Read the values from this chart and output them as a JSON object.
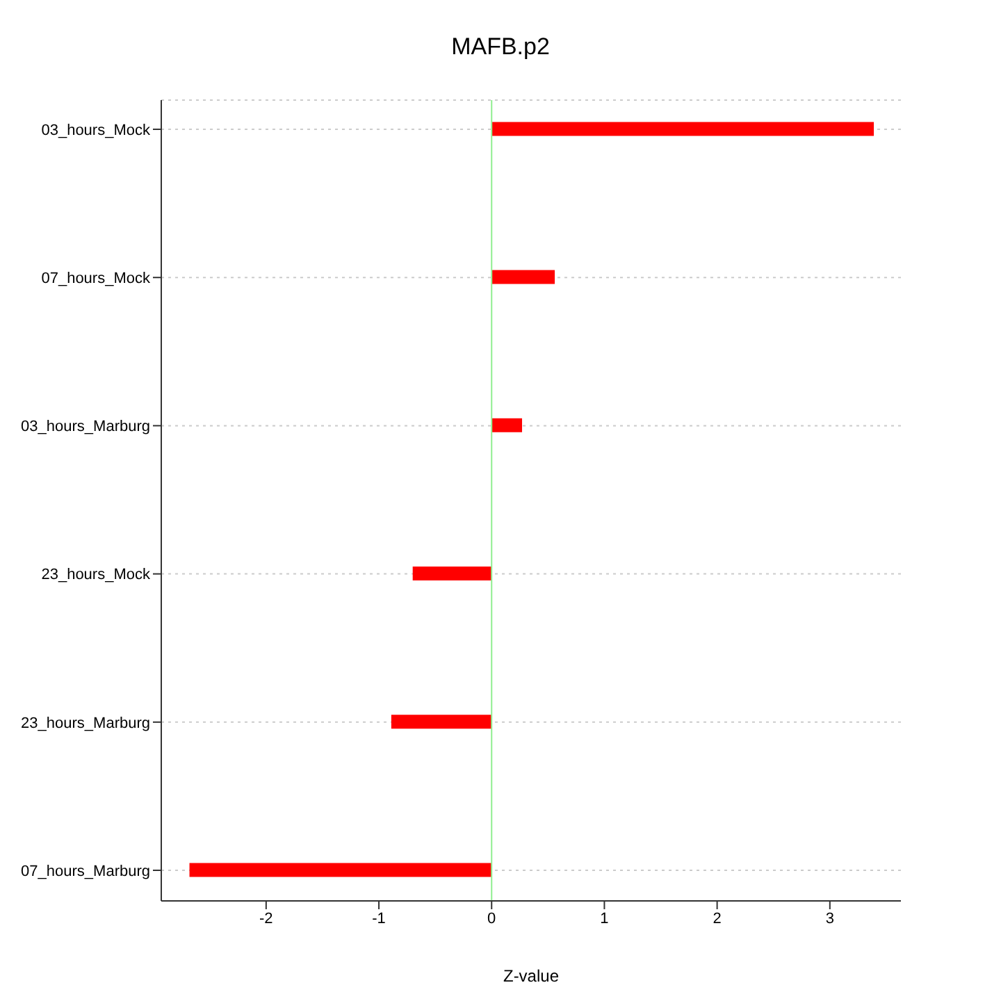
{
  "chart_data": {
    "type": "bar",
    "orientation": "horizontal",
    "title": "MAFB.p2",
    "xlabel": "Z-value",
    "categories": [
      "03_hours_Mock",
      "07_hours_Mock",
      "03_hours_Marburg",
      "23_hours_Mock",
      "23_hours_Marburg",
      "07_hours_Marburg"
    ],
    "values": [
      3.39,
      0.56,
      0.27,
      -0.7,
      -0.89,
      -2.68
    ],
    "color": "#ff0000",
    "xlim": [
      -2.93,
      3.63
    ],
    "xticks": [
      -2,
      -1,
      0,
      1,
      2,
      3
    ],
    "grid": "y",
    "ref_lines": [
      {
        "axis": "x",
        "value": 0,
        "color": "#90ee90"
      }
    ]
  }
}
